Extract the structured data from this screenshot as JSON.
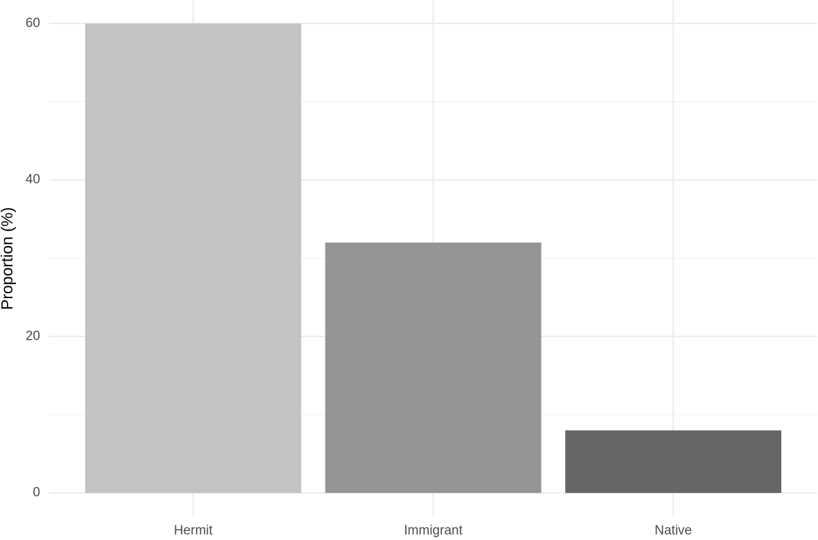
{
  "chart_data": {
    "type": "bar",
    "y_label": "Proportion (%)",
    "categories": [
      "Hermit",
      "Immigrant",
      "Native"
    ],
    "values": [
      60,
      32,
      8
    ],
    "colors": [
      "#c3c3c3",
      "#959595",
      "#666666"
    ],
    "ylim": [
      -3,
      63
    ],
    "yticks": [
      0,
      20,
      40,
      60
    ],
    "minor_yticks": [
      10,
      30,
      50
    ],
    "grid": true
  }
}
